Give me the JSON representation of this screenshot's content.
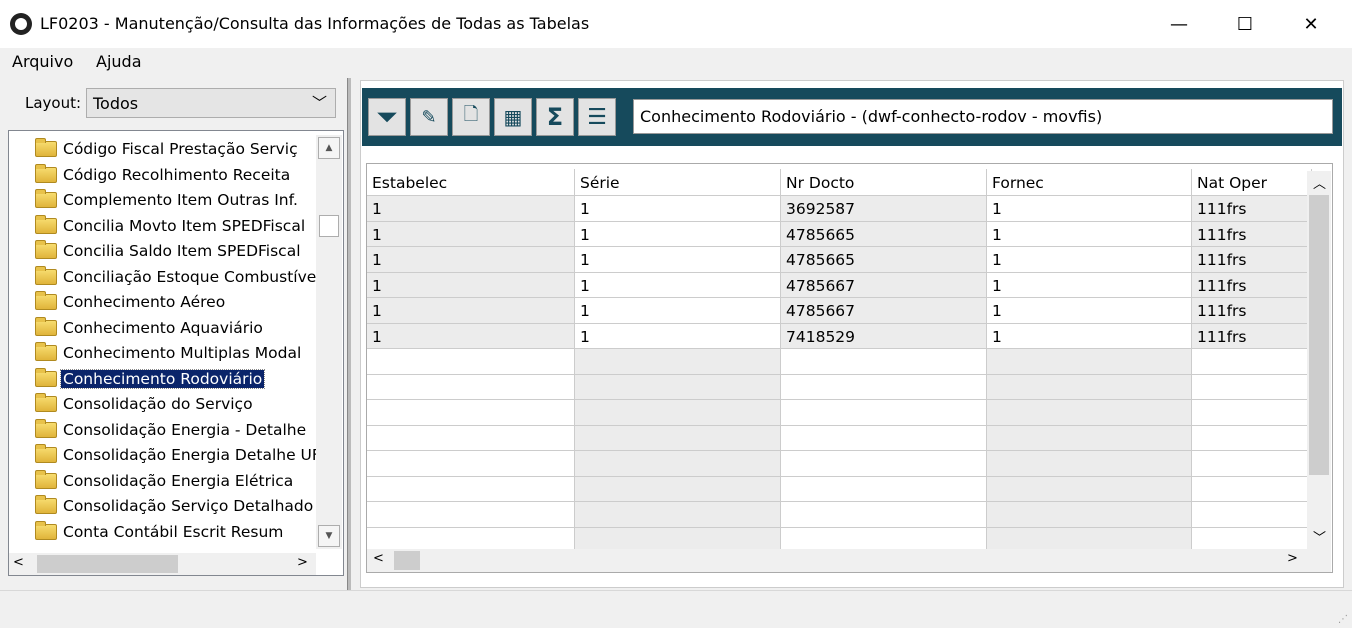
{
  "window": {
    "title": "LF0203 - Manutenção/Consulta das Informações de Todas as Tabelas",
    "minimize": "—",
    "maximize": "☐",
    "close": "✕"
  },
  "menu": [
    "Arquivo",
    "Ajuda"
  ],
  "layout": {
    "label": "Layout:",
    "value": "Todos"
  },
  "tree": {
    "items": [
      "Código Fiscal Prestação Serviç",
      "Código Recolhimento Receita",
      "Complemento Item Outras Inf.",
      "Concilia Movto Item SPEDFiscal",
      "Concilia Saldo Item SPEDFiscal",
      "Conciliação Estoque Combustíve",
      "Conhecimento Aéreo",
      "Conhecimento Aquaviário",
      "Conhecimento Multiplas Modal",
      "Conhecimento Rodoviário",
      "Consolidação do Serviço",
      "Consolidação Energia - Detalhe",
      "Consolidação Energia Detalhe UF",
      "Consolidação Energia Elétrica",
      "Consolidação Serviço Detalhado",
      "Conta Contábil  Escrit Resum"
    ],
    "selected": 9
  },
  "toolbar": {
    "icons": [
      "filter-icon",
      "edit-icon",
      "new-document-icon",
      "calculator-icon",
      "sum-icon",
      "settings-sliders-icon"
    ],
    "table_title": "Conhecimento Rodoviário - (dwf-conhecto-rodov - movfis)",
    "colors": {
      "band": "#164a5c"
    }
  },
  "grid": {
    "columns": [
      "Estabelec",
      "Série",
      "Nr Docto",
      "Fornec",
      "Nat Oper"
    ],
    "rows": [
      [
        "1",
        "1",
        "3692587",
        "1",
        "111frs"
      ],
      [
        "1",
        "1",
        "4785665",
        "1",
        "111frs"
      ],
      [
        "1",
        "1",
        "4785665",
        "1",
        "111frs"
      ],
      [
        "1",
        "1",
        "4785667",
        "1",
        "111frs"
      ],
      [
        "1",
        "1",
        "4785667",
        "1",
        "111frs"
      ],
      [
        "1",
        "1",
        "7418529",
        "1",
        "111frs"
      ]
    ]
  }
}
